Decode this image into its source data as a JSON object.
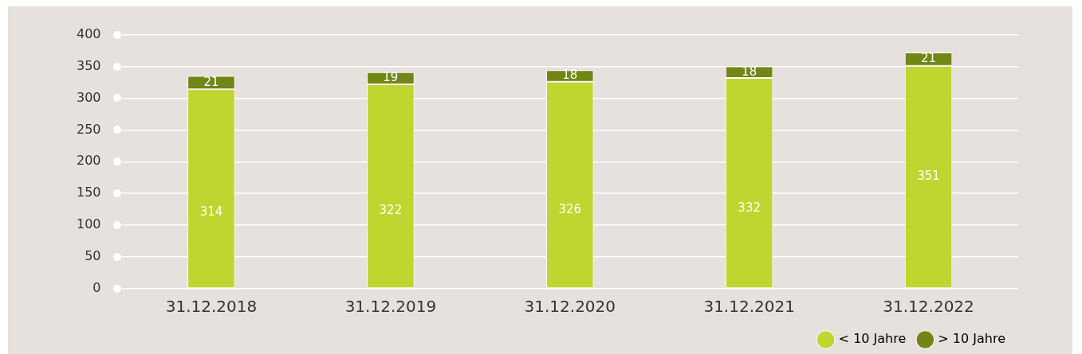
{
  "chart_data": {
    "type": "bar",
    "stacked": true,
    "categories": [
      "31.12.2018",
      "31.12.2019",
      "31.12.2020",
      "31.12.2021",
      "31.12.2022"
    ],
    "series": [
      {
        "name": "< 10 Jahre",
        "color": "#bed62f",
        "values": [
          314,
          322,
          326,
          332,
          351
        ]
      },
      {
        "name": "> 10 Jahre",
        "color": "#718615",
        "values": [
          21,
          19,
          18,
          18,
          21
        ]
      }
    ],
    "ylim": [
      0,
      400
    ],
    "yticks": [
      0,
      50,
      100,
      150,
      200,
      250,
      300,
      350,
      400
    ],
    "grid": "y",
    "legend": "bottom right",
    "data_labels": true
  }
}
